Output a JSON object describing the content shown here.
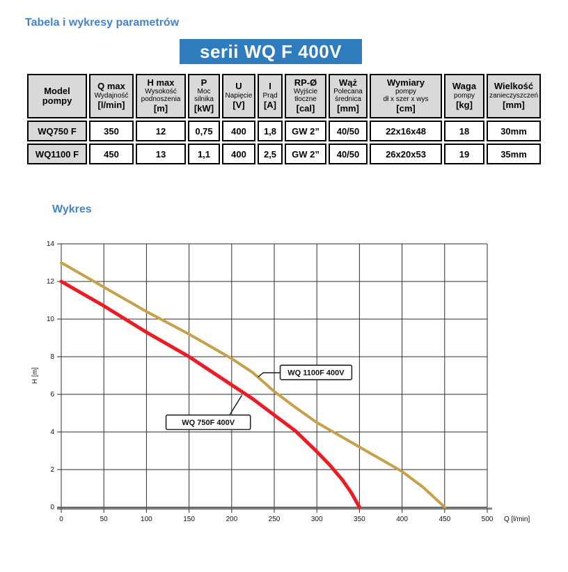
{
  "page": {
    "title": "Tabela i wykresy parametrów",
    "banner": "serii WQ F 400V",
    "chart_heading": "Wykres",
    "accent_blue": "#2e7cbe"
  },
  "table": {
    "columns": [
      {
        "top": "Model pompy",
        "mid": "",
        "unit": ""
      },
      {
        "top": "Q max",
        "mid": "Wydajność",
        "unit": "[l/min]"
      },
      {
        "top": "H max",
        "mid": "Wysokość podnoszenia",
        "unit": "[m]"
      },
      {
        "top": "P",
        "mid": "Moc silnika",
        "unit": "[kW]"
      },
      {
        "top": "U",
        "mid": "Napięcie",
        "unit": "[V]"
      },
      {
        "top": "I",
        "mid": "Prąd",
        "unit": "[A]"
      },
      {
        "top": "RP-Ø",
        "mid": "Wyjście tłoczne",
        "unit": "[cal]"
      },
      {
        "top": "Wąż",
        "mid": "Polecana średnica",
        "unit": "[mm]"
      },
      {
        "top": "Wymiary",
        "mid": "pompy\ndł x szer x wys",
        "unit": "[cm]"
      },
      {
        "top": "Waga",
        "mid": "pompy",
        "unit": "[kg]"
      },
      {
        "top": "Wielkość",
        "mid": "zanieczyszczeń",
        "unit": "[mm]"
      }
    ],
    "rows": [
      {
        "cells": [
          "WQ750 F",
          "350",
          "12",
          "0,75",
          "400",
          "1,8",
          "GW 2”",
          "40/50",
          "22x16x48",
          "18",
          "30mm"
        ]
      },
      {
        "cells": [
          "WQ1100 F",
          "450",
          "13",
          "1,1",
          "400",
          "2,5",
          "GW 2”",
          "40/50",
          "26x20x53",
          "19",
          "35mm"
        ]
      }
    ]
  },
  "chart_data": {
    "type": "line",
    "title": "",
    "xlabel": "Q [l/min]",
    "ylabel": "H [m]",
    "xlim": [
      0,
      500
    ],
    "ylim": [
      0,
      14
    ],
    "x_ticks": [
      0,
      50,
      100,
      150,
      200,
      250,
      300,
      350,
      400,
      450,
      500
    ],
    "y_ticks": [
      0,
      2,
      4,
      6,
      8,
      10,
      12,
      14
    ],
    "grid": true,
    "grid_color": "#2e2e2e",
    "axis_color": "#808080",
    "series": [
      {
        "name": "WQ 750F 400V",
        "color": "#ed1c24",
        "width": 5,
        "points": [
          [
            0,
            12
          ],
          [
            25,
            11.35
          ],
          [
            50,
            10.7
          ],
          [
            75,
            10.0
          ],
          [
            100,
            9.3
          ],
          [
            125,
            8.65
          ],
          [
            150,
            8.0
          ],
          [
            175,
            7.25
          ],
          [
            200,
            6.5
          ],
          [
            225,
            5.75
          ],
          [
            250,
            4.9
          ],
          [
            275,
            4.05
          ],
          [
            300,
            2.95
          ],
          [
            315,
            2.25
          ],
          [
            330,
            1.45
          ],
          [
            340,
            0.8
          ],
          [
            350,
            0
          ]
        ]
      },
      {
        "name": "WQ 1100F 400V",
        "color": "#c9a04a",
        "width": 4,
        "points": [
          [
            0,
            13
          ],
          [
            25,
            12.35
          ],
          [
            50,
            11.7
          ],
          [
            75,
            11.05
          ],
          [
            100,
            10.4
          ],
          [
            125,
            9.8
          ],
          [
            150,
            9.2
          ],
          [
            175,
            8.55
          ],
          [
            200,
            7.9
          ],
          [
            225,
            7.15
          ],
          [
            250,
            6.15
          ],
          [
            275,
            5.3
          ],
          [
            300,
            4.5
          ],
          [
            325,
            3.85
          ],
          [
            350,
            3.2
          ],
          [
            375,
            2.55
          ],
          [
            400,
            1.9
          ],
          [
            425,
            1.05
          ],
          [
            450,
            0
          ]
        ]
      }
    ],
    "annotations": [
      {
        "label": "WQ 1100F 400V",
        "box": {
          "q_left": 257,
          "h_top": 7.55,
          "q_right": 341,
          "h_bottom": 6.78
        },
        "leader": [
          [
            257,
            7.15
          ],
          [
            237,
            7.15
          ],
          [
            231,
            6.92
          ]
        ]
      },
      {
        "label": "WQ 750F 400V",
        "box": {
          "q_left": 123,
          "h_top": 4.9,
          "q_right": 222,
          "h_bottom": 4.13
        },
        "leader": [
          [
            198,
            4.93
          ],
          [
            212,
            5.95
          ]
        ]
      }
    ],
    "legend_position": "inline-callouts"
  }
}
